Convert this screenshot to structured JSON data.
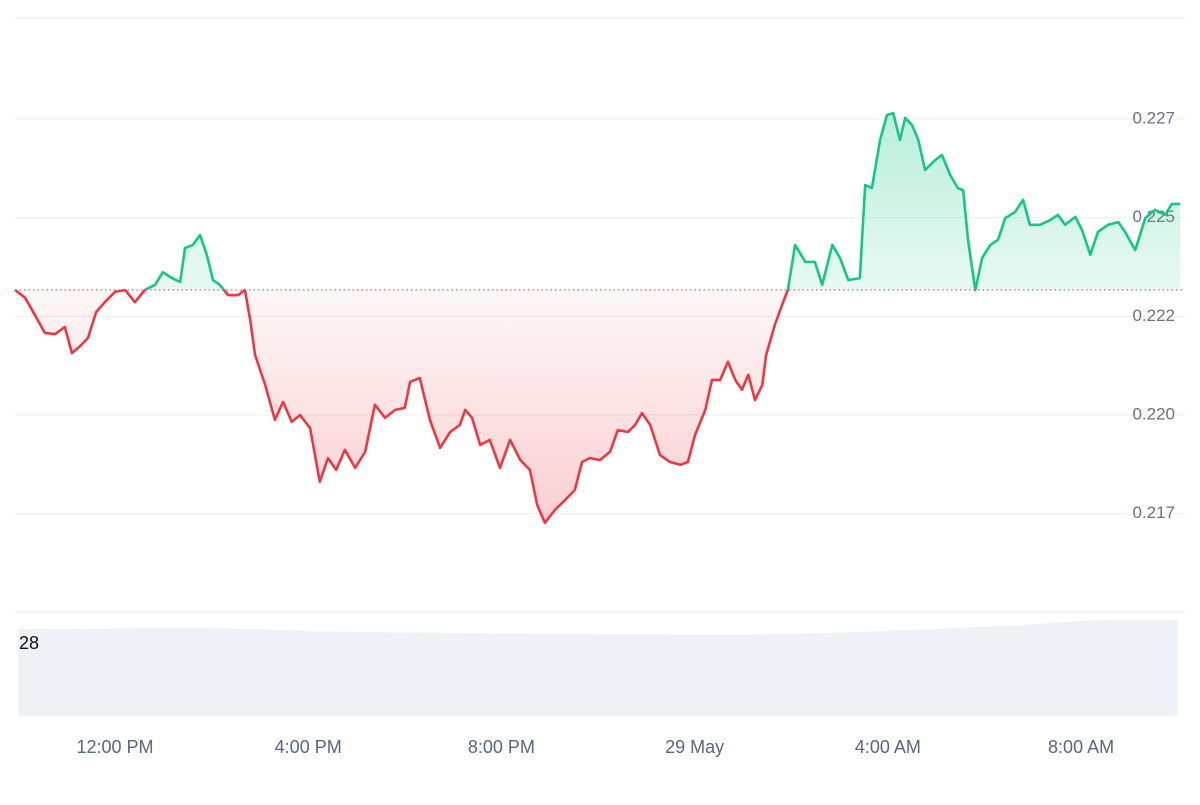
{
  "chart_data": {
    "type": "line",
    "x": [
      9.93,
      10.14,
      10.34,
      10.55,
      10.76,
      10.96,
      11.11,
      11.28,
      11.44,
      11.61,
      11.79,
      12.0,
      12.21,
      12.41,
      12.62,
      12.83,
      12.99,
      13.18,
      13.35,
      13.45,
      13.61,
      13.76,
      13.9,
      14.03,
      14.17,
      14.34,
      14.55,
      14.69,
      14.8,
      14.9,
      15.11,
      15.31,
      15.48,
      15.66,
      15.83,
      16.04,
      16.24,
      16.41,
      16.58,
      16.76,
      16.97,
      17.18,
      17.38,
      17.59,
      17.8,
      18.0,
      18.11,
      18.31,
      18.52,
      18.73,
      18.94,
      19.14,
      19.25,
      19.39,
      19.56,
      19.76,
      19.97,
      20.18,
      20.39,
      20.59,
      20.74,
      20.9,
      21.11,
      21.32,
      21.52,
      21.67,
      21.83,
      22.04,
      22.25,
      22.41,
      22.62,
      22.77,
      22.91,
      23.08,
      23.28,
      23.49,
      23.7,
      23.86,
      24.01,
      24.22,
      24.36,
      24.53,
      24.69,
      24.84,
      24.98,
      25.11,
      25.25,
      25.4,
      25.48,
      25.66,
      25.81,
      25.93,
      26.08,
      26.29,
      26.49,
      26.64,
      26.85,
      27.01,
      27.18,
      27.42,
      27.53,
      27.67,
      27.84,
      27.98,
      28.11,
      28.25,
      28.36,
      28.5,
      28.63,
      28.77,
      28.98,
      29.12,
      29.29,
      29.45,
      29.56,
      29.66,
      29.81,
      29.95,
      30.12,
      30.28,
      30.43,
      30.63,
      30.8,
      30.94,
      31.15,
      31.36,
      31.52,
      31.67,
      31.88,
      32.02,
      32.19,
      32.35,
      32.56,
      32.77,
      32.91,
      33.12,
      33.33,
      33.53,
      33.74,
      33.88,
      34.05
    ],
    "values": [
      0.22267,
      0.22247,
      0.22204,
      0.22158,
      0.22155,
      0.22173,
      0.22107,
      0.22125,
      0.22145,
      0.22211,
      0.22236,
      0.22262,
      0.22267,
      0.22236,
      0.22267,
      0.2228,
      0.22312,
      0.22297,
      0.22287,
      0.22373,
      0.22381,
      0.22406,
      0.22356,
      0.22292,
      0.2228,
      0.22254,
      0.22254,
      0.22267,
      0.22191,
      0.22102,
      0.22026,
      0.21938,
      0.21983,
      0.21933,
      0.2195,
      0.21917,
      0.21781,
      0.21841,
      0.21811,
      0.21862,
      0.21816,
      0.21857,
      0.21976,
      0.21943,
      0.21963,
      0.21968,
      0.22034,
      0.22044,
      0.21938,
      0.21867,
      0.21907,
      0.21925,
      0.21963,
      0.21943,
      0.21874,
      0.21887,
      0.21816,
      0.21887,
      0.21836,
      0.21811,
      0.21722,
      0.21677,
      0.2171,
      0.21735,
      0.2176,
      0.21831,
      0.21841,
      0.21836,
      0.21857,
      0.21912,
      0.21907,
      0.21925,
      0.21955,
      0.21925,
      0.21849,
      0.21831,
      0.21824,
      0.21831,
      0.219,
      0.21963,
      0.22039,
      0.22039,
      0.22085,
      0.22039,
      0.22014,
      0.22052,
      0.21988,
      0.22026,
      0.22102,
      0.22178,
      0.22229,
      0.22267,
      0.22381,
      0.22338,
      0.22338,
      0.2228,
      0.22381,
      0.22348,
      0.22292,
      0.22297,
      0.22533,
      0.22525,
      0.22647,
      0.2271,
      0.22715,
      0.22647,
      0.22703,
      0.22685,
      0.22647,
      0.22571,
      0.22596,
      0.22609,
      0.22558,
      0.22525,
      0.2252,
      0.22394,
      0.22267,
      0.22348,
      0.22381,
      0.22394,
      0.22449,
      0.22464,
      0.22495,
      0.22432,
      0.22432,
      0.22444,
      0.22457,
      0.22432,
      0.22452,
      0.22419,
      0.22356,
      0.22414,
      0.22432,
      0.22439,
      0.22414,
      0.22368,
      0.22449,
      0.2247,
      0.22457,
      0.22485,
      0.22485
    ],
    "baseline": 0.22267,
    "up_color": "#16c784",
    "down_color": "#ea3943",
    "xlim": [
      9.93,
      34.11
    ],
    "xticks": [
      {
        "value": 12,
        "label": "12:00 PM"
      },
      {
        "value": 16,
        "label": "4:00 PM"
      },
      {
        "value": 20,
        "label": "8:00 PM"
      },
      {
        "value": 24,
        "label": "29 May"
      },
      {
        "value": 28,
        "label": "4:00 AM"
      },
      {
        "value": 32,
        "label": "8:00 AM"
      }
    ],
    "ylim": [
      0.21451,
      0.22956
    ],
    "yticks": [
      0.217,
      {
        "value": 0.2195,
        "label": "0.220"
      },
      0.222,
      {
        "value": 0.2245,
        "label": "0.225"
      },
      0.227
    ],
    "grid": true,
    "volume": {
      "label": "28",
      "color": "#eef1f5",
      "ylim": [
        0,
        30
      ],
      "x": [
        10,
        11,
        12,
        13,
        14,
        15,
        16,
        17,
        18,
        19,
        20,
        21,
        22,
        23,
        24,
        25,
        26,
        27,
        28,
        29,
        30,
        31,
        32,
        33,
        34
      ],
      "values": [
        25.1,
        25.0,
        25.2,
        25.4,
        25.3,
        25.0,
        24.5,
        24.3,
        24.1,
        23.9,
        23.8,
        23.7,
        23.6,
        23.6,
        23.5,
        23.5,
        23.7,
        24.0,
        24.6,
        25.0,
        25.8,
        26.4,
        27.5,
        27.7,
        27.7
      ]
    }
  }
}
